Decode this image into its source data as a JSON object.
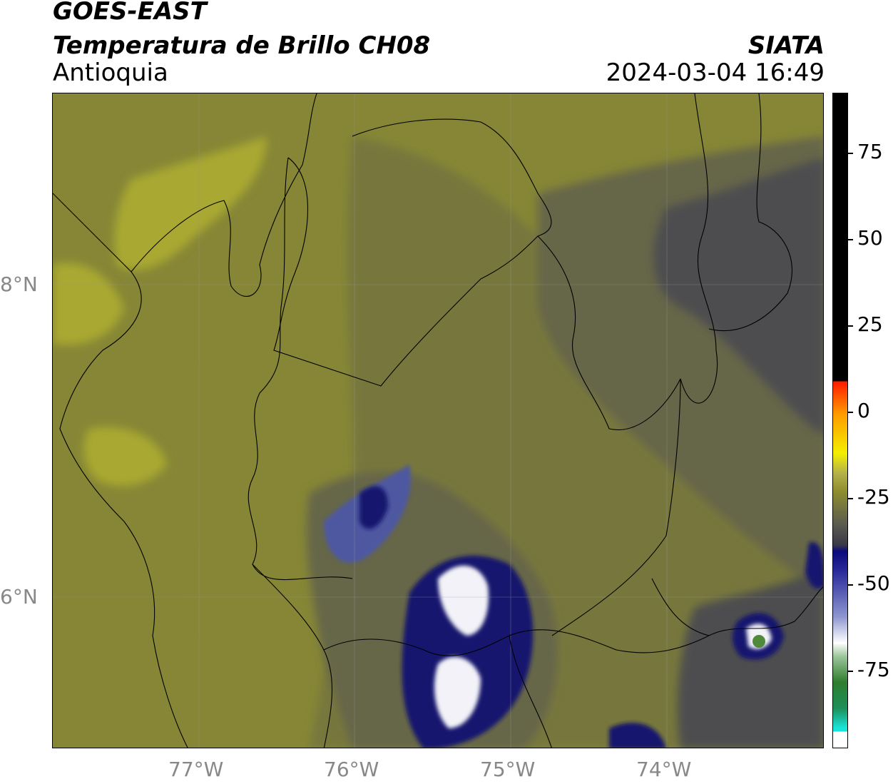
{
  "header": {
    "satellite": "GOES-EAST",
    "product": "Temperatura de Brillo CH08",
    "region": "Antioquia",
    "organization": "SIATA",
    "timestamp": "2024-03-04 16:49"
  },
  "axes": {
    "x_ticks": [
      "77°W",
      "76°W",
      "75°W",
      "74°W"
    ],
    "y_ticks": [
      "8°N",
      "6°N"
    ]
  },
  "colorbar": {
    "ticks": [
      "75",
      "50",
      "25",
      "0",
      "-25",
      "-50",
      "-75"
    ],
    "palette": {
      "black": "#000000",
      "red": "#ff1a00",
      "orange": "#ff9b00",
      "yellow": "#f3ef00",
      "olive": "#8c8c2f",
      "gray": "#4a4a4a",
      "navy": "#0b0b7d",
      "white": "#ffffff",
      "green": "#2e7d2e",
      "cyan": "#18e5d9"
    }
  },
  "map_colors": {
    "yellow_warm": "#a8a830",
    "olive": "#868636",
    "olive_dark": "#77773d",
    "gray_olive": "#666648",
    "gray": "#4e4e50",
    "navy": "#14146e",
    "navy_mid": "#4e58a0",
    "white_cloud": "#f2f2f8",
    "green_core": "#4e8a3a"
  }
}
